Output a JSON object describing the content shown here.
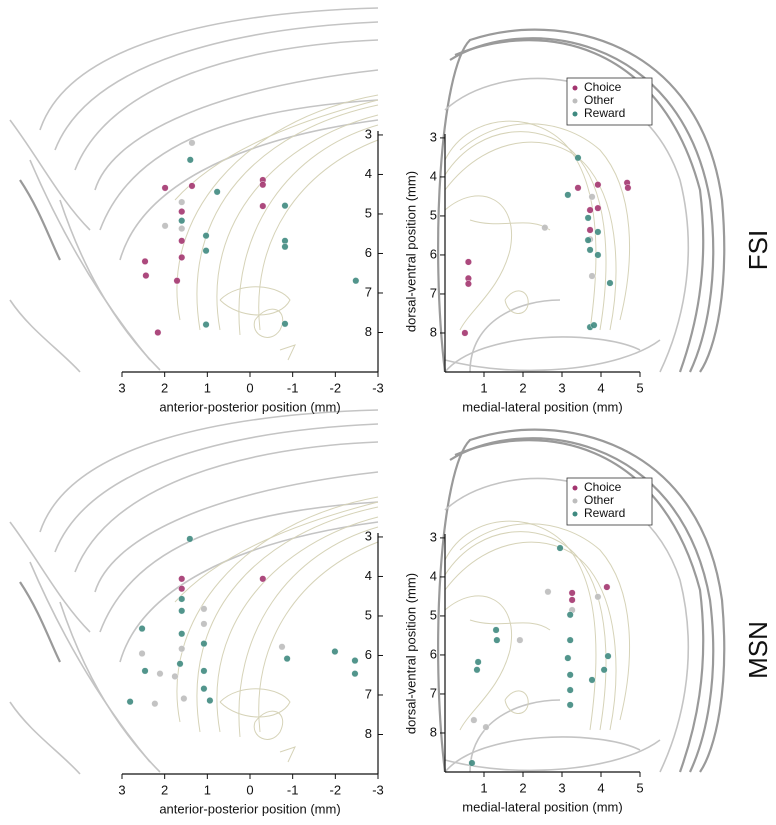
{
  "row_labels": [
    {
      "text": "FSI",
      "color": "#c8283c"
    },
    {
      "text": "MSN",
      "color": "#2a2f72"
    }
  ],
  "chart_data": [
    {
      "type": "scatter",
      "x_label": "anterior-posterior position (mm)",
      "y_label": "dorsal-ventral position (mm)",
      "xlim": [
        3,
        -3
      ],
      "ylim": [
        2.9,
        9
      ],
      "xticks": [
        3,
        2,
        1,
        0,
        -1,
        -2,
        -3
      ],
      "yticks": [
        3,
        4,
        5,
        6,
        7,
        8
      ],
      "legend": false,
      "series": [
        {
          "name": "Choice",
          "color": "#a3356f",
          "x": [
            2.46,
            2.44,
            1.99,
            1.6,
            1.6,
            1.6,
            1.71,
            1.36,
            -0.3,
            -0.3,
            -0.3,
            2.16
          ],
          "y": [
            6.2,
            6.56,
            4.34,
            4.94,
            5.68,
            6.1,
            6.69,
            4.29,
            4.14,
            4.26,
            4.8,
            8.0
          ]
        },
        {
          "name": "Other",
          "color": "#bdbdbd",
          "x": [
            1.36,
            1.99,
            1.6,
            1.6
          ],
          "y": [
            3.2,
            5.3,
            5.37,
            4.7
          ]
        },
        {
          "name": "Reward",
          "color": "#3f8a80",
          "x": [
            1.4,
            1.6,
            1.03,
            1.03,
            0.77,
            -0.82,
            -0.82,
            -0.82,
            -2.48,
            1.03,
            -0.82
          ],
          "y": [
            3.63,
            5.17,
            5.55,
            5.93,
            4.44,
            4.79,
            5.68,
            5.83,
            6.69,
            7.8,
            7.78
          ]
        }
      ]
    },
    {
      "type": "scatter",
      "x_label": "medial-lateral position (mm)",
      "xlim": [
        0,
        5
      ],
      "ylim": [
        2.9,
        9
      ],
      "xticks": [
        1,
        2,
        3,
        4,
        5
      ],
      "yticks": [
        3,
        4,
        5,
        6,
        7,
        8
      ],
      "legend": "top-right",
      "series": [
        {
          "name": "Choice",
          "color": "#a3356f",
          "x": [
            0.6,
            0.6,
            0.6,
            0.51,
            3.41,
            3.92,
            3.72,
            3.92,
            4.67,
            4.69,
            3.72
          ],
          "y": [
            6.18,
            6.6,
            6.74,
            8.0,
            4.28,
            4.2,
            4.85,
            4.8,
            4.15,
            4.28,
            5.36
          ]
        },
        {
          "name": "Other",
          "color": "#bdbdbd",
          "x": [
            2.56,
            3.77,
            3.72,
            3.77
          ],
          "y": [
            5.3,
            4.51,
            5.6,
            6.54
          ]
        },
        {
          "name": "Reward",
          "color": "#3f8a80",
          "x": [
            3.41,
            3.15,
            3.67,
            3.67,
            3.72,
            3.92,
            3.92,
            4.23,
            3.72,
            3.82
          ],
          "y": [
            3.51,
            4.46,
            5.05,
            5.62,
            5.87,
            5.41,
            6.0,
            6.72,
            7.85,
            7.8
          ]
        }
      ]
    },
    {
      "type": "scatter",
      "x_label": "anterior-posterior position (mm)",
      "y_label": "dorsal-ventral position (mm)",
      "xlim": [
        3,
        -3
      ],
      "ylim": [
        2.9,
        9
      ],
      "xticks": [
        3,
        2,
        1,
        0,
        -1,
        -2,
        -3
      ],
      "yticks": [
        3,
        4,
        5,
        6,
        7,
        8
      ],
      "legend": false,
      "series": [
        {
          "name": "Choice",
          "color": "#a3356f",
          "x": [
            1.6,
            -0.3,
            1.6
          ],
          "y": [
            4.31,
            4.06,
            4.06
          ]
        },
        {
          "name": "Other",
          "color": "#bdbdbd",
          "x": [
            2.53,
            2.11,
            2.23,
            1.6,
            1.08,
            1.08,
            1.55,
            -0.75,
            1.76
          ],
          "y": [
            5.95,
            6.46,
            7.22,
            5.83,
            4.82,
            5.2,
            7.09,
            5.78,
            6.53
          ]
        },
        {
          "name": "Reward",
          "color": "#3f8a80",
          "x": [
            1.41,
            1.6,
            1.6,
            1.6,
            1.08,
            1.08,
            1.08,
            2.53,
            2.46,
            2.81,
            -0.87,
            -1.99,
            -2.46,
            -2.46,
            0.94,
            1.64
          ],
          "y": [
            3.05,
            4.57,
            4.87,
            5.45,
            5.7,
            6.39,
            6.84,
            5.32,
            6.39,
            7.17,
            6.08,
            5.9,
            6.13,
            6.46,
            7.14,
            6.21
          ]
        }
      ]
    },
    {
      "type": "scatter",
      "x_label": "medial-lateral position (mm)",
      "xlim": [
        0,
        5
      ],
      "ylim": [
        2.9,
        9
      ],
      "xticks": [
        1,
        2,
        3,
        4,
        5
      ],
      "yticks": [
        3,
        4,
        5,
        6,
        7,
        8
      ],
      "legend": "top-right",
      "series": [
        {
          "name": "Choice",
          "color": "#a3356f",
          "x": [
            3.26,
            3.26,
            4.15
          ],
          "y": [
            4.41,
            4.59,
            4.26
          ]
        },
        {
          "name": "Other",
          "color": "#bdbdbd",
          "x": [
            0.74,
            1.05,
            2.64,
            3.92,
            3.26,
            1.92
          ],
          "y": [
            7.67,
            7.85,
            4.38,
            4.51,
            4.85,
            5.62
          ]
        },
        {
          "name": "Reward",
          "color": "#3f8a80",
          "x": [
            2.95,
            3.21,
            3.21,
            3.15,
            3.21,
            3.21,
            3.21,
            1.31,
            1.33,
            0.85,
            0.82,
            4.08,
            3.77,
            0.69,
            4.18
          ],
          "y": [
            3.26,
            4.97,
            5.62,
            6.08,
            6.51,
            6.9,
            7.28,
            5.36,
            5.62,
            6.18,
            6.38,
            6.38,
            6.64,
            8.77,
            6.03
          ]
        }
      ]
    }
  ]
}
